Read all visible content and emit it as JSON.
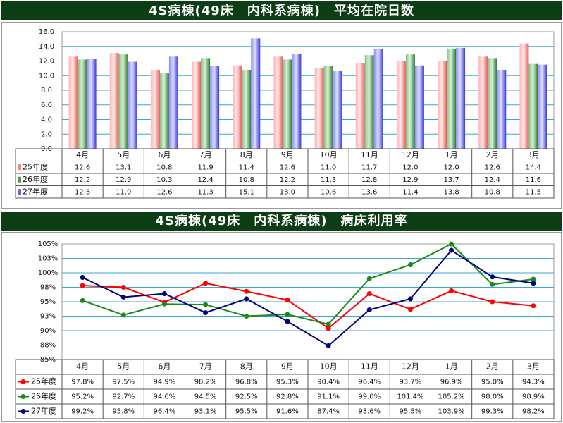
{
  "chart_data": [
    {
      "type": "bar",
      "title": "4S病棟(49床　内科系病棟)　平均在院日数",
      "categories": [
        "4月",
        "5月",
        "6月",
        "7月",
        "8月",
        "9月",
        "10月",
        "11月",
        "12月",
        "1月",
        "2月",
        "3月"
      ],
      "ylim": [
        0,
        16
      ],
      "yticks": [
        "0.0",
        "2.0",
        "4.0",
        "6.0",
        "8.0",
        "10.0",
        "12.0",
        "14.0",
        "16.0"
      ],
      "grid": true,
      "legend": "data-table-left",
      "series": [
        {
          "name": "25年度",
          "color": "#ff7f7f",
          "values": [
            12.6,
            13.1,
            10.8,
            11.9,
            11.4,
            12.6,
            11.0,
            11.7,
            12.0,
            12.0,
            12.6,
            14.4
          ],
          "labels": [
            "12.6",
            "13.1",
            "10.8",
            "11.9",
            "11.4",
            "12.6",
            "11.0",
            "11.7",
            "12.0",
            "12.0",
            "12.6",
            "14.4"
          ]
        },
        {
          "name": "26年度",
          "color": "#4f9a4f",
          "values": [
            12.2,
            12.9,
            10.3,
            12.4,
            10.8,
            12.2,
            11.3,
            12.8,
            12.9,
            13.7,
            12.4,
            11.6
          ],
          "labels": [
            "12.2",
            "12.9",
            "10.3",
            "12.4",
            "10.8",
            "12.2",
            "11.3",
            "12.8",
            "12.9",
            "13.7",
            "12.4",
            "11.6"
          ]
        },
        {
          "name": "27年度",
          "color": "#5f5fff",
          "values": [
            12.3,
            11.9,
            12.6,
            11.3,
            15.1,
            13.0,
            10.6,
            13.6,
            11.4,
            13.8,
            10.8,
            11.5
          ],
          "labels": [
            "12.3",
            "11.9",
            "12.6",
            "11.3",
            "15.1",
            "13.0",
            "10.6",
            "13.6",
            "11.4",
            "13.8",
            "10.8",
            "11.5"
          ]
        }
      ]
    },
    {
      "type": "line",
      "title": "4S病棟(49床　内科系病棟)　病床利用率",
      "categories": [
        "4月",
        "5月",
        "6月",
        "7月",
        "8月",
        "9月",
        "10月",
        "11月",
        "12月",
        "1月",
        "2月",
        "3月"
      ],
      "ylim": [
        85,
        105
      ],
      "yticks": [
        "85%",
        "88%",
        "90%",
        "93%",
        "95%",
        "98%",
        "100%",
        "103%",
        "105%"
      ],
      "grid": true,
      "legend": "data-table-left",
      "series": [
        {
          "name": "25年度",
          "color": "#ff0000",
          "values": [
            97.8,
            97.5,
            94.9,
            98.2,
            96.8,
            95.3,
            90.4,
            96.4,
            93.7,
            96.9,
            95.0,
            94.3
          ],
          "labels": [
            "97.8%",
            "97.5%",
            "94.9%",
            "98.2%",
            "96.8%",
            "95.3%",
            "90.4%",
            "96.4%",
            "93.7%",
            "96.9%",
            "95.0%",
            "94.3%"
          ]
        },
        {
          "name": "26年度",
          "color": "#1a8a1a",
          "values": [
            95.2,
            92.7,
            94.6,
            94.5,
            92.5,
            92.8,
            91.1,
            99.0,
            101.4,
            105.2,
            98.0,
            98.9
          ],
          "labels": [
            "95.2%",
            "92.7%",
            "94.6%",
            "94.5%",
            "92.5%",
            "92.8%",
            "91.1%",
            "99.0%",
            "101.4%",
            "105.2%",
            "98.0%",
            "98.9%"
          ]
        },
        {
          "name": "27年度",
          "color": "#000080",
          "values": [
            99.2,
            95.8,
            96.4,
            93.1,
            95.5,
            91.6,
            87.4,
            93.6,
            95.5,
            103.9,
            99.3,
            98.2
          ],
          "labels": [
            "99.2%",
            "95.8%",
            "96.4%",
            "93.1%",
            "95.5%",
            "91.6%",
            "87.4%",
            "93.6%",
            "95.5%",
            "103.9%",
            "99.3%",
            "98.2%"
          ]
        }
      ]
    }
  ]
}
